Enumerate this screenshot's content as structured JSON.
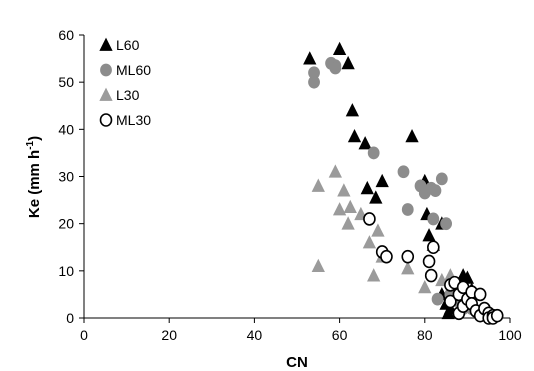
{
  "chart_data": {
    "type": "scatter",
    "title": "",
    "xlabel": "CN",
    "ylabel_main": "Ke (mm h",
    "ylabel_sup": "-1",
    "ylabel_close": ")",
    "xlim": [
      0,
      100
    ],
    "ylim": [
      0,
      60
    ],
    "xticks": [
      0,
      20,
      40,
      60,
      80,
      100
    ],
    "yticks": [
      0,
      10,
      20,
      30,
      40,
      50,
      60
    ],
    "grid": false,
    "legend_position": "top-left",
    "series": [
      {
        "name": "L60",
        "marker": "triangle",
        "fill": "#000000",
        "stroke": "#000000",
        "points": [
          [
            53,
            55
          ],
          [
            60,
            57
          ],
          [
            62,
            54
          ],
          [
            63,
            44
          ],
          [
            63.5,
            38.5
          ],
          [
            66,
            37
          ],
          [
            66.5,
            27.5
          ],
          [
            68.5,
            25.5
          ],
          [
            70,
            29
          ],
          [
            77,
            38.5
          ],
          [
            80,
            29
          ],
          [
            80.5,
            22
          ],
          [
            81,
            17.5
          ],
          [
            82,
            15.5
          ],
          [
            84,
            20
          ],
          [
            84,
            5
          ],
          [
            85,
            3
          ],
          [
            85.5,
            1
          ],
          [
            86,
            2
          ],
          [
            87,
            5.5
          ],
          [
            88,
            7
          ],
          [
            89,
            9
          ],
          [
            90,
            8.5
          ],
          [
            91,
            6
          ]
        ]
      },
      {
        "name": "ML60",
        "marker": "circle",
        "fill": "#8c8c8c",
        "stroke": "#8c8c8c",
        "points": [
          [
            54,
            52
          ],
          [
            54,
            50
          ],
          [
            58,
            54
          ],
          [
            59,
            53.5
          ],
          [
            59,
            53
          ],
          [
            68,
            35
          ],
          [
            75,
            31
          ],
          [
            76,
            23
          ],
          [
            79,
            28
          ],
          [
            80,
            26.5
          ],
          [
            81.5,
            27.5
          ],
          [
            82,
            21
          ],
          [
            82.5,
            27
          ],
          [
            84,
            29.5
          ],
          [
            85,
            20
          ],
          [
            83,
            4
          ],
          [
            86,
            5
          ],
          [
            87,
            6.5
          ],
          [
            88,
            3.5
          ],
          [
            89,
            2
          ],
          [
            90,
            3
          ],
          [
            91,
            2
          ]
        ]
      },
      {
        "name": "L30",
        "marker": "triangle",
        "fill": "#9b9b9b",
        "stroke": "#9b9b9b",
        "points": [
          [
            55,
            11
          ],
          [
            55,
            28
          ],
          [
            59,
            31
          ],
          [
            60,
            23
          ],
          [
            61,
            27
          ],
          [
            62,
            20
          ],
          [
            62.5,
            23.5
          ],
          [
            65,
            22
          ],
          [
            67,
            16
          ],
          [
            68,
            9
          ],
          [
            69,
            18.5
          ],
          [
            70,
            13
          ],
          [
            76,
            10.5
          ],
          [
            80,
            6.5
          ],
          [
            84,
            8
          ],
          [
            86,
            9
          ]
        ]
      },
      {
        "name": "ML30",
        "marker": "circle",
        "fill": "#ffffff",
        "stroke": "#000000",
        "points": [
          [
            67,
            21
          ],
          [
            70,
            14
          ],
          [
            71,
            13
          ],
          [
            76,
            13
          ],
          [
            81,
            12
          ],
          [
            81.5,
            9
          ],
          [
            82,
            15
          ],
          [
            86,
            7
          ],
          [
            86,
            3.5
          ],
          [
            87,
            7.5
          ],
          [
            88,
            5
          ],
          [
            88,
            1
          ],
          [
            89,
            6.5
          ],
          [
            89,
            2.5
          ],
          [
            90,
            4
          ],
          [
            91,
            5.5
          ],
          [
            91,
            3
          ],
          [
            92,
            1.5
          ],
          [
            93,
            5
          ],
          [
            93,
            0.5
          ],
          [
            94,
            2
          ],
          [
            95,
            1
          ],
          [
            95,
            0
          ],
          [
            96,
            0.5
          ],
          [
            96,
            0
          ],
          [
            97,
            0.5
          ]
        ]
      }
    ]
  }
}
